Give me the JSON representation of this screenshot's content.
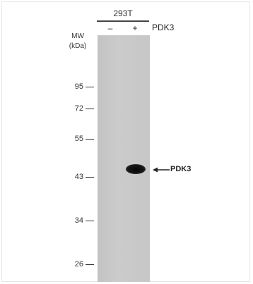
{
  "header": {
    "cell_line": "293T",
    "lanes": [
      "–",
      "+"
    ],
    "target": "PDK3"
  },
  "mw": {
    "label_line1": "MW",
    "label_line2": "(kDa)",
    "markers": [
      "95",
      "72",
      "55",
      "43",
      "34",
      "26"
    ]
  },
  "annotation": {
    "band_label": "PDK3"
  },
  "colors": {
    "membrane": "#c7c7c7",
    "band": "#0a0a0a"
  }
}
